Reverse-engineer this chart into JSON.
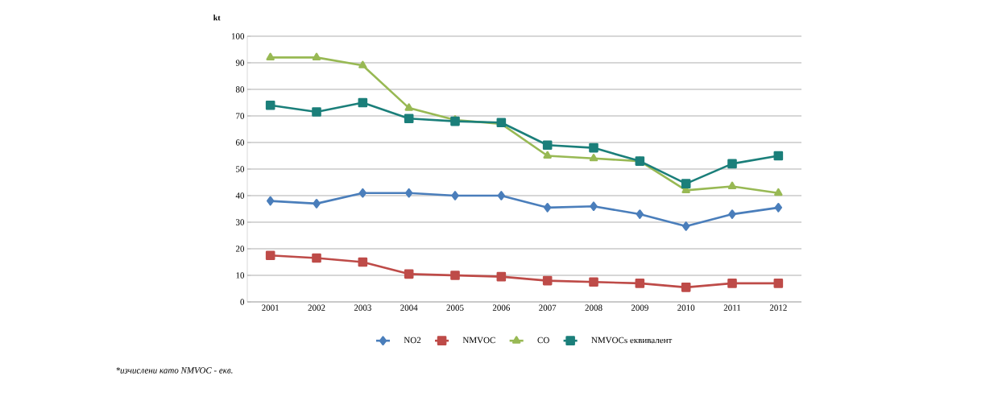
{
  "chart_data": {
    "type": "line",
    "ylabel": "kt",
    "categories": [
      "2001",
      "2002",
      "2003",
      "2004",
      "2005",
      "2006",
      "2007",
      "2008",
      "2009",
      "2010",
      "2011",
      "2012"
    ],
    "series": [
      {
        "name": "NO2",
        "color": "#4a7ebb",
        "marker": "diamond",
        "values": [
          38,
          37,
          41,
          41,
          40,
          40,
          35.5,
          36,
          33,
          28.5,
          33,
          35.5
        ]
      },
      {
        "name": "NMVOC",
        "color": "#be4b48",
        "marker": "square",
        "values": [
          17.5,
          16.5,
          15,
          10.5,
          10,
          9.5,
          8,
          7.5,
          7,
          5.5,
          7,
          7
        ]
      },
      {
        "name": "CO",
        "color": "#98b954",
        "marker": "triangle",
        "values": [
          92,
          92,
          89,
          73,
          68.5,
          67,
          55,
          54,
          53,
          42,
          43.5,
          41
        ]
      },
      {
        "name": "NMVOCs еквивалент",
        "color": "#1b7f7a",
        "marker": "square",
        "values": [
          74,
          71.5,
          75,
          69,
          68,
          67.5,
          59,
          58,
          53,
          44.5,
          52,
          55
        ]
      }
    ],
    "ylim": [
      0,
      100
    ],
    "yticks": [
      0,
      10,
      20,
      30,
      40,
      50,
      60,
      70,
      80,
      90,
      100
    ],
    "grid": "y",
    "legend": "bottom",
    "annotations": [
      "*изчислени като NMVOC - екв."
    ]
  }
}
